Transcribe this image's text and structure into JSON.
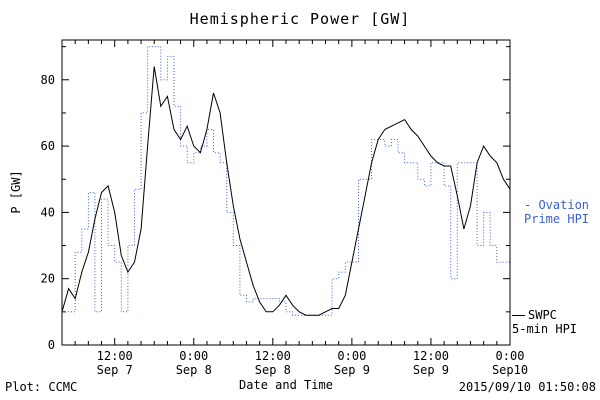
{
  "title": "Hemispheric Power [GW]",
  "axes": {
    "ylabel": "P [GW]",
    "xlabel": "Date and Time"
  },
  "footer": {
    "left": "Plot: CCMC",
    "right": "2015/09/10 01:50:08"
  },
  "legend": {
    "ovation_line1": "- Ovation",
    "ovation_line2": "Prime HPI",
    "swpc_line1": "SWPC",
    "swpc_line2": "5-min HPI"
  },
  "colors": {
    "ovation": "#3a5fcd",
    "swpc": "#000000"
  },
  "chart_data": {
    "type": "line",
    "title": "Hemispheric Power [GW]",
    "xlabel": "Date and Time",
    "ylabel": "P [GW]",
    "x_unit": "hours since 2015-09-07 00:00",
    "xlim": [
      4,
      72
    ],
    "ylim": [
      0,
      92
    ],
    "yticks": [
      0,
      20,
      40,
      60,
      80
    ],
    "y_minor_step": 10,
    "x_minor_step": 2,
    "grid": false,
    "legend_position": "right-outside",
    "xticks": [
      {
        "x": 12,
        "time": "12:00",
        "date": "Sep 7"
      },
      {
        "x": 24,
        "time": "0:00",
        "date": "Sep 8"
      },
      {
        "x": 36,
        "time": "12:00",
        "date": "Sep 8"
      },
      {
        "x": 48,
        "time": "0:00",
        "date": "Sep 9"
      },
      {
        "x": 60,
        "time": "12:00",
        "date": "Sep 9"
      },
      {
        "x": 72,
        "time": "0:00",
        "date": "Sep10"
      }
    ],
    "x": [
      4,
      5,
      6,
      7,
      8,
      9,
      10,
      11,
      12,
      13,
      14,
      15,
      16,
      17,
      18,
      19,
      20,
      21,
      22,
      23,
      24,
      25,
      26,
      27,
      28,
      29,
      30,
      31,
      32,
      33,
      34,
      35,
      36,
      37,
      38,
      39,
      40,
      41,
      42,
      43,
      44,
      45,
      46,
      47,
      48,
      49,
      50,
      51,
      52,
      53,
      54,
      55,
      56,
      57,
      58,
      59,
      60,
      61,
      62,
      63,
      64,
      65,
      66,
      67,
      68,
      69,
      70,
      71,
      72
    ],
    "series": [
      {
        "name": "Ovation Prime HPI",
        "color": "#3a5fcd",
        "style": "dotted-step",
        "step": true,
        "dash": "1,2",
        "values": [
          10,
          10,
          28,
          35,
          46,
          10,
          44,
          30,
          25,
          10,
          30,
          47,
          70,
          90,
          90,
          80,
          87,
          72,
          60,
          55,
          58,
          60,
          65,
          58,
          55,
          40,
          30,
          15,
          13,
          14,
          14,
          14,
          14,
          13,
          10,
          9,
          9,
          9,
          9,
          9,
          9,
          20,
          22,
          25,
          25,
          50,
          50,
          62,
          62,
          60,
          62,
          58,
          55,
          55,
          50,
          48,
          55,
          55,
          48,
          20,
          55,
          55,
          55,
          30,
          40,
          30,
          25,
          25,
          25
        ]
      },
      {
        "name": "SWPC 5-min HPI",
        "color": "#000000",
        "style": "solid",
        "step": false,
        "dash": "",
        "values": [
          10,
          17,
          14,
          22,
          28,
          38,
          46,
          48,
          40,
          27,
          22,
          25,
          35,
          60,
          84,
          72,
          75,
          65,
          62,
          66,
          60,
          58,
          65,
          76,
          70,
          55,
          42,
          32,
          25,
          18,
          13,
          10,
          10,
          12,
          15,
          12,
          10,
          9,
          9,
          9,
          10,
          11,
          11,
          15,
          25,
          35,
          45,
          55,
          62,
          65,
          66,
          67,
          68,
          65,
          63,
          60,
          57,
          55,
          54,
          54,
          45,
          35,
          42,
          55,
          60,
          57,
          55,
          50,
          47
        ]
      }
    ]
  }
}
